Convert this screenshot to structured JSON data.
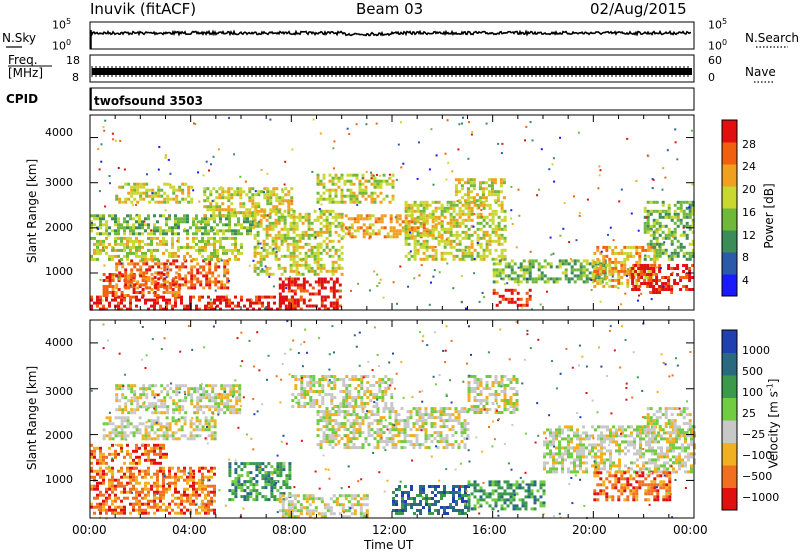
{
  "header": {
    "station": "Inuvik (fitACF)",
    "beam": "Beam 03",
    "date": "02/Aug/2015"
  },
  "noise_panel": {
    "left_label": "N.Sky",
    "left_ticks": [
      "10^5",
      "10^0"
    ],
    "right_label": "N.Search",
    "right_ticks": [
      "10^5",
      "10^0"
    ]
  },
  "freq_panel": {
    "left_label_1": "Freq.",
    "left_label_2": "[MHz]",
    "left_ticks": [
      "18",
      "8"
    ],
    "right_label": "Nave",
    "right_ticks": [
      "60",
      "0"
    ]
  },
  "cpid": {
    "label": "CPID",
    "value": "twofsound 3503"
  },
  "chart_data": [
    {
      "type": "heatmap",
      "title": "",
      "ylabel": "Slant Range [km]",
      "xlabel": "",
      "ylim": [
        180,
        4500
      ],
      "yticks": [
        "1000",
        "2000",
        "3000",
        "4000"
      ],
      "xlim_hours": [
        0,
        24
      ],
      "colorbar": {
        "label": "Power [dB]",
        "ticks": [
          "4",
          "8",
          "12",
          "16",
          "20",
          "24",
          "28"
        ],
        "colors": [
          "#1a1aff",
          "#2a5aa8",
          "#3c8c5a",
          "#6fb83a",
          "#c8d830",
          "#f0a020",
          "#f06010",
          "#e01010"
        ]
      },
      "echo_regions": [
        {
          "t0": 0.0,
          "t1": 8.0,
          "r0": 200,
          "r1": 500,
          "level": 7
        },
        {
          "t0": 0.5,
          "t1": 3.5,
          "r0": 500,
          "r1": 1000,
          "level": 6
        },
        {
          "t0": 1.0,
          "t1": 5.5,
          "r0": 700,
          "r1": 1300,
          "level": 6
        },
        {
          "t0": 0.0,
          "t1": 6.0,
          "r0": 1300,
          "r1": 1800,
          "level": 4
        },
        {
          "t0": 0.0,
          "t1": 6.5,
          "r0": 1900,
          "r1": 2300,
          "level": 3
        },
        {
          "t0": 1.0,
          "t1": 4.0,
          "r0": 2600,
          "r1": 3000,
          "level": 4
        },
        {
          "t0": 4.5,
          "t1": 8.0,
          "r0": 2300,
          "r1": 2900,
          "level": 4
        },
        {
          "t0": 7.5,
          "t1": 10.0,
          "r0": 200,
          "r1": 900,
          "level": 7
        },
        {
          "t0": 6.5,
          "t1": 10.0,
          "r0": 1000,
          "r1": 2400,
          "level": 4
        },
        {
          "t0": 9.0,
          "t1": 12.0,
          "r0": 2600,
          "r1": 3200,
          "level": 4
        },
        {
          "t0": 10.0,
          "t1": 14.0,
          "r0": 1800,
          "r1": 2300,
          "level": 5
        },
        {
          "t0": 12.5,
          "t1": 16.5,
          "r0": 1300,
          "r1": 2600,
          "level": 4
        },
        {
          "t0": 14.5,
          "t1": 16.5,
          "r0": 2600,
          "r1": 3100,
          "level": 4
        },
        {
          "t0": 16.0,
          "t1": 17.5,
          "r0": 300,
          "r1": 650,
          "level": 7
        },
        {
          "t0": 16.0,
          "t1": 20.5,
          "r0": 800,
          "r1": 1300,
          "level": 3
        },
        {
          "t0": 20.0,
          "t1": 22.5,
          "r0": 700,
          "r1": 1600,
          "level": 5
        },
        {
          "t0": 21.5,
          "t1": 24.0,
          "r0": 600,
          "r1": 1200,
          "level": 7
        },
        {
          "t0": 22.0,
          "t1": 24.0,
          "r0": 1300,
          "r1": 2600,
          "level": 3
        }
      ]
    },
    {
      "type": "heatmap",
      "title": "",
      "ylabel": "Slant Range [km]",
      "xlabel": "Time UT",
      "ylim": [
        180,
        4500
      ],
      "yticks": [
        "1000",
        "2000",
        "3000",
        "4000"
      ],
      "xticks": [
        "00:00",
        "04:00",
        "08:00",
        "12:00",
        "16:00",
        "20:00",
        "00:00"
      ],
      "xlim_hours": [
        0,
        24
      ],
      "colorbar": {
        "label": "Velocity [m s^-1]",
        "ticks": [
          "1000",
          "500",
          "100",
          "25",
          "−25",
          "−100",
          "−500",
          "−1000"
        ],
        "colors": [
          "#2040b0",
          "#2a6a80",
          "#3a9a4a",
          "#70cc40",
          "#c8c8c8",
          "#f0b020",
          "#f07020",
          "#e01010"
        ]
      },
      "echo_regions": [
        {
          "t0": 0.0,
          "t1": 5.0,
          "r0": 300,
          "r1": 1300,
          "level": 6
        },
        {
          "t0": 0.0,
          "t1": 3.0,
          "r0": 1400,
          "r1": 1800,
          "level": 6
        },
        {
          "t0": 1.0,
          "t1": 6.0,
          "r0": 2500,
          "r1": 3100,
          "level": 4
        },
        {
          "t0": 0.5,
          "t1": 5.0,
          "r0": 1900,
          "r1": 2400,
          "level": 4
        },
        {
          "t0": 5.5,
          "t1": 8.0,
          "r0": 600,
          "r1": 1400,
          "level": 2
        },
        {
          "t0": 7.5,
          "t1": 11.0,
          "r0": 200,
          "r1": 700,
          "level": 4
        },
        {
          "t0": 9.0,
          "t1": 15.0,
          "r0": 1700,
          "r1": 2600,
          "level": 4
        },
        {
          "t0": 8.0,
          "t1": 12.0,
          "r0": 2600,
          "r1": 3300,
          "level": 4
        },
        {
          "t0": 12.0,
          "t1": 15.0,
          "r0": 300,
          "r1": 900,
          "level": 1
        },
        {
          "t0": 15.0,
          "t1": 18.0,
          "r0": 400,
          "r1": 1000,
          "level": 2
        },
        {
          "t0": 15.0,
          "t1": 17.0,
          "r0": 2500,
          "r1": 3300,
          "level": 4
        },
        {
          "t0": 18.0,
          "t1": 24.0,
          "r0": 1200,
          "r1": 2200,
          "level": 4
        },
        {
          "t0": 20.0,
          "t1": 23.0,
          "r0": 600,
          "r1": 1200,
          "level": 6
        },
        {
          "t0": 22.0,
          "t1": 24.0,
          "r0": 2000,
          "r1": 2600,
          "level": 4
        }
      ]
    }
  ]
}
